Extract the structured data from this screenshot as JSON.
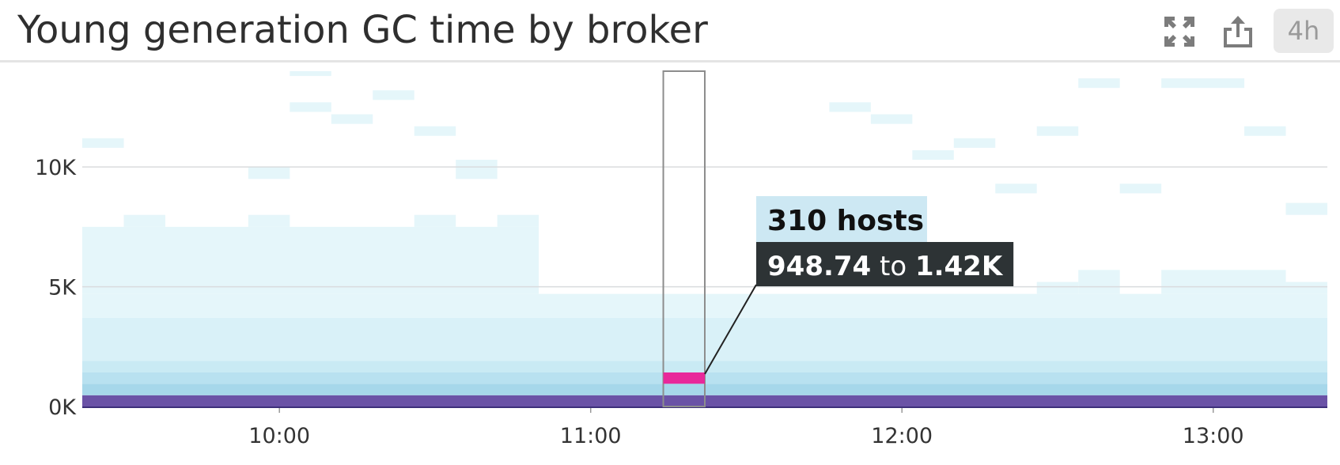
{
  "header": {
    "title": "Young generation GC time by broker",
    "expand_icon": "expand-icon",
    "share_icon": "share-icon",
    "time_range": "4h"
  },
  "colors": {
    "bottom_band": "#6a52a6",
    "highlight": "#e8289a",
    "cell_palette": [
      "#e5f6fa",
      "#d9f1f8",
      "#c9eaf4",
      "#b8e1f0",
      "#a6d7ea",
      "#8fc5e0",
      "#8a7fc0",
      "#6a52a6"
    ],
    "tooltip_count_bg": "#cde8f3",
    "tooltip_range_bg": "#2d3335"
  },
  "chart_data": {
    "type": "heatmap",
    "title": "Young generation GC time by broker",
    "xlabel": "",
    "ylabel": "",
    "x_tick_labels": [
      "10:00",
      "11:00",
      "12:00",
      "13:00"
    ],
    "y_tick_labels": [
      "0K",
      "5K",
      "10K"
    ],
    "y_tick_values": [
      0,
      5000,
      10000
    ],
    "x_range": [
      "09:22",
      "13:22"
    ],
    "ylim": [
      0,
      14000
    ],
    "bucket_minutes": 8,
    "buckets": [
      "09:22",
      "09:30",
      "09:38",
      "09:46",
      "09:54",
      "10:02",
      "10:10",
      "10:18",
      "10:26",
      "10:34",
      "10:42",
      "10:50",
      "10:58",
      "11:06",
      "11:14",
      "11:22",
      "11:30",
      "11:38",
      "11:46",
      "11:54",
      "12:02",
      "12:10",
      "12:18",
      "12:26",
      "12:34",
      "12:42",
      "12:50",
      "12:58",
      "13:06",
      "13:14"
    ],
    "grid": true,
    "cells": [
      {
        "x0": "09:22",
        "x1": "13:22",
        "y0": 0,
        "y1": 470,
        "level": 7
      },
      {
        "x0": "09:22",
        "x1": "13:22",
        "y0": 470,
        "y1": 950,
        "level": 4
      },
      {
        "x0": "09:22",
        "x1": "13:22",
        "y0": 950,
        "y1": 1420,
        "level": 3
      },
      {
        "x0": "09:22",
        "x1": "13:22",
        "y0": 1420,
        "y1": 1900,
        "level": 2
      },
      {
        "x0": "09:22",
        "x1": "13:22",
        "y0": 1900,
        "y1": 3700,
        "level": 1
      },
      {
        "x0": "09:22",
        "x1": "13:22",
        "y0": 3700,
        "y1": 4700,
        "level": 0
      },
      {
        "x0": "09:22",
        "x1": "10:50",
        "y0": 4700,
        "y1": 7500,
        "level": 0
      },
      {
        "x0": "09:30",
        "x1": "09:38",
        "y0": 7500,
        "y1": 8000,
        "level": 0
      },
      {
        "x0": "09:54",
        "x1": "10:02",
        "y0": 7500,
        "y1": 8000,
        "level": 0
      },
      {
        "x0": "10:26",
        "x1": "10:34",
        "y0": 7500,
        "y1": 8000,
        "level": 0
      },
      {
        "x0": "10:42",
        "x1": "10:50",
        "y0": 7500,
        "y1": 8000,
        "level": 0
      },
      {
        "x0": "12:26",
        "x1": "12:34",
        "y0": 4700,
        "y1": 5200,
        "level": 0
      },
      {
        "x0": "12:34",
        "x1": "12:42",
        "y0": 4700,
        "y1": 5700,
        "level": 0
      },
      {
        "x0": "12:50",
        "x1": "13:14",
        "y0": 4700,
        "y1": 5700,
        "level": 0
      },
      {
        "x0": "13:14",
        "x1": "13:22",
        "y0": 4700,
        "y1": 5200,
        "level": 0
      },
      {
        "x0": "09:22",
        "x1": "09:30",
        "y0": 10800,
        "y1": 11200,
        "level": 0
      },
      {
        "x0": "09:54",
        "x1": "10:02",
        "y0": 9500,
        "y1": 10000,
        "level": 0
      },
      {
        "x0": "10:02",
        "x1": "10:10",
        "y0": 12300,
        "y1": 12700,
        "level": 0
      },
      {
        "x0": "10:02",
        "x1": "10:10",
        "y0": 13800,
        "y1": 14000,
        "level": 0
      },
      {
        "x0": "10:10",
        "x1": "10:18",
        "y0": 11800,
        "y1": 12200,
        "level": 0
      },
      {
        "x0": "10:18",
        "x1": "10:26",
        "y0": 12800,
        "y1": 13200,
        "level": 0
      },
      {
        "x0": "10:26",
        "x1": "10:34",
        "y0": 11300,
        "y1": 11700,
        "level": 0
      },
      {
        "x0": "10:34",
        "x1": "10:42",
        "y0": 9500,
        "y1": 10300,
        "level": 0
      },
      {
        "x0": "11:46",
        "x1": "11:54",
        "y0": 12300,
        "y1": 12700,
        "level": 0
      },
      {
        "x0": "11:54",
        "x1": "12:02",
        "y0": 11800,
        "y1": 12200,
        "level": 0
      },
      {
        "x0": "12:02",
        "x1": "12:10",
        "y0": 10300,
        "y1": 10700,
        "level": 0
      },
      {
        "x0": "12:10",
        "x1": "12:18",
        "y0": 10800,
        "y1": 11200,
        "level": 0
      },
      {
        "x0": "12:18",
        "x1": "12:26",
        "y0": 8900,
        "y1": 9300,
        "level": 0
      },
      {
        "x0": "12:26",
        "x1": "12:34",
        "y0": 11300,
        "y1": 11700,
        "level": 0
      },
      {
        "x0": "12:34",
        "x1": "12:42",
        "y0": 13300,
        "y1": 13700,
        "level": 0
      },
      {
        "x0": "12:42",
        "x1": "12:50",
        "y0": 8900,
        "y1": 9300,
        "level": 0
      },
      {
        "x0": "12:50",
        "x1": "13:06",
        "y0": 13300,
        "y1": 13700,
        "level": 0
      },
      {
        "x0": "13:06",
        "x1": "13:14",
        "y0": 11300,
        "y1": 11700,
        "level": 0
      },
      {
        "x0": "13:14",
        "x1": "13:22",
        "y0": 8000,
        "y1": 8500,
        "level": 0
      }
    ],
    "highlight": {
      "x0": "11:14",
      "x1": "11:22",
      "y0": 948.74,
      "y1": 1420,
      "count": "310 hosts",
      "range_from": "948.74",
      "range_word": "to",
      "range_to": "1.42K"
    }
  }
}
